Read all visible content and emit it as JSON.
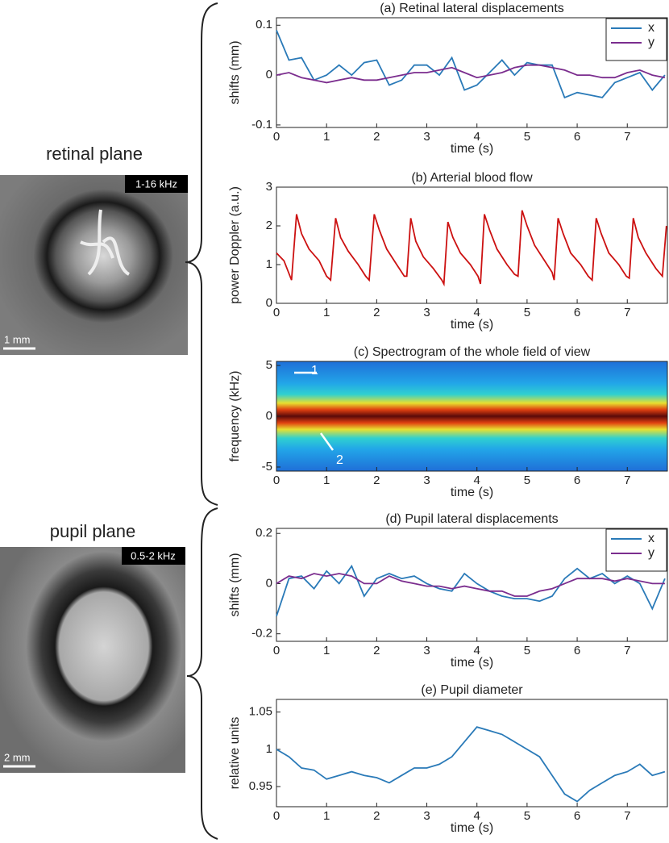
{
  "chart_data": [
    {
      "type": "line",
      "title": "(a) Retinal lateral displacements",
      "xlabel": "time (s)",
      "ylabel": "shifts (mm)",
      "xlim": [
        0,
        7.8
      ],
      "ylim": [
        -0.105,
        0.115
      ],
      "xticks": [
        0,
        1,
        2,
        3,
        4,
        5,
        6,
        7
      ],
      "yticks": [
        0.1,
        0,
        -0.1
      ],
      "legend": "upper right",
      "x": [
        0,
        0.25,
        0.5,
        0.75,
        1,
        1.25,
        1.5,
        1.75,
        2,
        2.25,
        2.5,
        2.75,
        3,
        3.25,
        3.5,
        3.75,
        4,
        4.25,
        4.5,
        4.75,
        5,
        5.25,
        5.5,
        5.75,
        6,
        6.25,
        6.5,
        6.75,
        7,
        7.25,
        7.5,
        7.75
      ],
      "series": [
        {
          "name": "x",
          "color": "#2a7ab8",
          "values": [
            0.09,
            0.03,
            0.035,
            -0.01,
            0.0,
            0.02,
            0.0,
            0.025,
            0.03,
            -0.02,
            -0.01,
            0.02,
            0.02,
            0.0,
            0.035,
            -0.03,
            -0.02,
            0.005,
            0.03,
            0.0,
            0.025,
            0.02,
            0.02,
            -0.045,
            -0.035,
            -0.04,
            -0.045,
            -0.015,
            -0.005,
            0.005,
            -0.03,
            0.0
          ]
        },
        {
          "name": "y",
          "color": "#7b2d8e",
          "values": [
            0.0,
            0.005,
            -0.005,
            -0.01,
            -0.015,
            -0.01,
            -0.005,
            -0.01,
            -0.01,
            -0.005,
            0.0,
            0.005,
            0.005,
            0.01,
            0.015,
            0.005,
            -0.005,
            0.0,
            0.005,
            0.015,
            0.02,
            0.02,
            0.015,
            0.01,
            0.0,
            0.0,
            -0.005,
            -0.005,
            0.005,
            0.01,
            0.0,
            -0.005
          ]
        }
      ]
    },
    {
      "type": "line",
      "title": "(b) Arterial blood flow",
      "xlabel": "time (s)",
      "ylabel": "power Doppler (a.u.)",
      "xlim": [
        0,
        7.8
      ],
      "ylim": [
        0,
        3
      ],
      "xticks": [
        0,
        1,
        2,
        3,
        4,
        5,
        6,
        7
      ],
      "yticks": [
        0,
        1,
        2,
        3
      ],
      "color": "#cc1111",
      "x": [
        0,
        0.15,
        0.3,
        0.4,
        0.5,
        0.65,
        0.85,
        1.0,
        1.08,
        1.18,
        1.28,
        1.43,
        1.63,
        1.78,
        1.85,
        1.95,
        2.05,
        2.2,
        2.4,
        2.55,
        2.6,
        2.68,
        2.78,
        2.93,
        3.13,
        3.3,
        3.34,
        3.42,
        3.52,
        3.67,
        3.87,
        4.02,
        4.07,
        4.15,
        4.25,
        4.4,
        4.6,
        4.75,
        4.82,
        4.9,
        5.0,
        5.15,
        5.35,
        5.5,
        5.54,
        5.62,
        5.72,
        5.87,
        6.07,
        6.22,
        6.3,
        6.38,
        6.48,
        6.63,
        6.83,
        6.98,
        7.04,
        7.12,
        7.22,
        7.37,
        7.57,
        7.7,
        7.78
      ],
      "values": [
        1.3,
        1.1,
        0.6,
        2.3,
        1.8,
        1.4,
        1.1,
        0.7,
        0.6,
        2.2,
        1.7,
        1.35,
        1.0,
        0.7,
        0.6,
        2.3,
        1.9,
        1.4,
        1.0,
        0.7,
        0.7,
        2.2,
        1.6,
        1.2,
        0.9,
        0.6,
        0.5,
        2.1,
        1.7,
        1.3,
        1.0,
        0.7,
        0.5,
        2.3,
        1.9,
        1.4,
        1.0,
        0.75,
        0.7,
        2.4,
        2.0,
        1.5,
        1.1,
        0.8,
        0.6,
        2.2,
        1.8,
        1.3,
        1.0,
        0.7,
        0.6,
        2.2,
        1.8,
        1.3,
        1.0,
        0.7,
        0.65,
        2.2,
        1.7,
        1.3,
        0.9,
        0.7,
        2.0
      ]
    },
    {
      "type": "spectrogram",
      "title": "(c) Spectrogram of the whole field of view",
      "xlabel": "time (s)",
      "ylabel": "frequency (kHz)",
      "xlim": [
        0,
        7.8
      ],
      "ylim": [
        -5.4,
        5.4
      ],
      "xticks": [
        0,
        1,
        2,
        3,
        4,
        5,
        6,
        7
      ],
      "yticks": [
        5,
        0,
        -5
      ],
      "annotations": [
        "1",
        "2"
      ]
    },
    {
      "type": "line",
      "title": "(d) Pupil lateral displacements",
      "xlabel": "time (s)",
      "ylabel": "shifts (mm)",
      "xlim": [
        0,
        7.8
      ],
      "ylim": [
        -0.23,
        0.22
      ],
      "xticks": [
        0,
        1,
        2,
        3,
        4,
        5,
        6,
        7
      ],
      "yticks": [
        0.2,
        0,
        -0.2
      ],
      "legend": "upper right",
      "x": [
        0,
        0.25,
        0.5,
        0.75,
        1,
        1.25,
        1.5,
        1.75,
        2,
        2.25,
        2.5,
        2.75,
        3,
        3.25,
        3.5,
        3.75,
        4,
        4.25,
        4.5,
        4.75,
        5,
        5.25,
        5.5,
        5.75,
        6,
        6.25,
        6.5,
        6.75,
        7,
        7.25,
        7.5,
        7.75
      ],
      "series": [
        {
          "name": "x",
          "color": "#2a7ab8",
          "values": [
            -0.13,
            0.02,
            0.03,
            -0.02,
            0.05,
            0.0,
            0.07,
            -0.05,
            0.02,
            0.04,
            0.02,
            0.03,
            0.0,
            -0.02,
            -0.03,
            0.04,
            0.0,
            -0.03,
            -0.05,
            -0.06,
            -0.06,
            -0.07,
            -0.05,
            0.02,
            0.06,
            0.02,
            0.04,
            0.0,
            0.03,
            0.0,
            -0.1,
            0.02
          ]
        },
        {
          "name": "y",
          "color": "#7b2d8e",
          "values": [
            0.0,
            0.03,
            0.02,
            0.04,
            0.03,
            0.04,
            0.03,
            0.0,
            0.0,
            0.03,
            0.01,
            0.0,
            -0.01,
            -0.01,
            -0.02,
            -0.01,
            -0.02,
            -0.03,
            -0.03,
            -0.05,
            -0.05,
            -0.03,
            -0.02,
            0.0,
            0.02,
            0.02,
            0.02,
            0.01,
            0.02,
            0.01,
            0.0,
            0.0
          ]
        }
      ]
    },
    {
      "type": "line",
      "title": "(e) Pupil diameter",
      "xlabel": "time (s)",
      "ylabel": "relative units",
      "xlim": [
        0,
        7.8
      ],
      "ylim": [
        0.923,
        1.067
      ],
      "xticks": [
        0,
        1,
        2,
        3,
        4,
        5,
        6,
        7
      ],
      "yticks": [
        0.95,
        1,
        1.05
      ],
      "color": "#2a7ab8",
      "x": [
        0,
        0.25,
        0.5,
        0.75,
        1,
        1.25,
        1.5,
        1.75,
        2,
        2.25,
        2.5,
        2.75,
        3,
        3.25,
        3.5,
        3.75,
        4,
        4.25,
        4.5,
        4.75,
        5,
        5.25,
        5.5,
        5.75,
        6,
        6.25,
        6.5,
        6.75,
        7,
        7.25,
        7.5,
        7.75
      ],
      "values": [
        1.0,
        0.99,
        0.975,
        0.972,
        0.96,
        0.965,
        0.97,
        0.965,
        0.962,
        0.955,
        0.965,
        0.975,
        0.975,
        0.98,
        0.99,
        1.01,
        1.03,
        1.025,
        1.02,
        1.01,
        1.0,
        0.99,
        0.965,
        0.94,
        0.93,
        0.945,
        0.955,
        0.965,
        0.97,
        0.98,
        0.965,
        0.97
      ]
    }
  ],
  "left_panels": [
    {
      "label": "retinal plane",
      "badge": "1-16 kHz",
      "scale": "1 mm"
    },
    {
      "label": "pupil plane",
      "badge": "0.5-2 kHz",
      "scale": "2 mm"
    }
  ]
}
